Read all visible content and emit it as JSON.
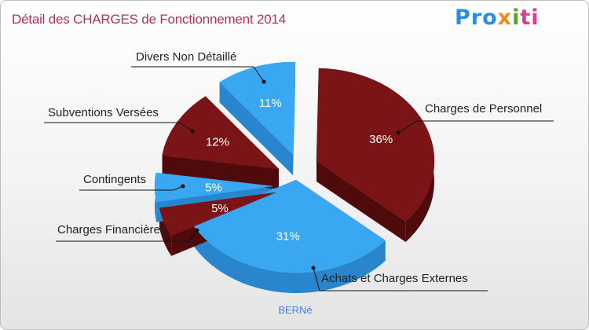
{
  "title": "Détail des CHARGES de Fonctionnement 2014",
  "logo": {
    "p1": "Pro",
    "p2": "x",
    "p3": "i",
    "p4": "ti"
  },
  "commune": "BERNé",
  "colors": {
    "dark_red": "#7b1416",
    "blue": "#3aa7f2"
  },
  "chart_data": {
    "type": "pie",
    "style": "3d-exploded",
    "title": "Détail des CHARGES de Fonctionnement 2014",
    "slices": [
      {
        "label": "Charges de Personnel",
        "value": 36,
        "pct_label": "36%",
        "color": "dark_red"
      },
      {
        "label": "Achats et Charges Externes",
        "value": 31,
        "pct_label": "31%",
        "color": "blue"
      },
      {
        "label": "Charges Financières",
        "value": 5,
        "pct_label": "5%",
        "color": "dark_red"
      },
      {
        "label": "Contingents",
        "value": 5,
        "pct_label": "5%",
        "color": "blue"
      },
      {
        "label": "Subventions Versées",
        "value": 12,
        "pct_label": "12%",
        "color": "dark_red"
      },
      {
        "label": "Divers Non Détaillé",
        "value": 11,
        "pct_label": "11%",
        "color": "blue"
      }
    ]
  }
}
